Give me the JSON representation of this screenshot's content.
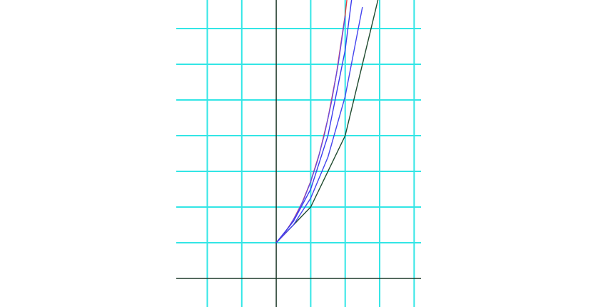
{
  "chart_data": {
    "type": "line",
    "title": "",
    "xlabel": "",
    "ylabel": "",
    "xlim": [
      -2.9,
      4.2
    ],
    "ylim": [
      -0.8,
      7.8
    ],
    "grid": true,
    "grid_x": [
      -2,
      -1,
      0,
      1,
      2,
      3,
      4
    ],
    "grid_y": [
      0,
      1,
      2,
      3,
      4,
      5,
      6,
      7
    ],
    "colors": {
      "background": "#ffffff",
      "grid": "#33e6e6",
      "axes": "#1f3a2a"
    },
    "series": [
      {
        "color": "#1f4a2e",
        "x": [
          0,
          1,
          2,
          3
        ],
        "y": [
          1,
          2,
          4,
          8
        ]
      },
      {
        "color": "#4444ee",
        "x": [
          0,
          0.5,
          1,
          1.5,
          2,
          2.5
        ],
        "y": [
          1,
          1.5,
          2.25,
          3.4,
          5.1,
          7.6
        ]
      },
      {
        "color": "#e63a3a",
        "x": [
          0,
          0.25,
          0.5,
          0.75,
          1,
          1.25,
          1.5,
          1.75,
          2,
          2.25
        ],
        "y": [
          1,
          1.28,
          1.65,
          2.12,
          2.72,
          3.49,
          4.48,
          5.75,
          7.39,
          9.49
        ]
      },
      {
        "color": "#6a4ae0",
        "x": [
          0,
          0.2,
          0.4,
          0.6,
          0.8,
          1,
          1.2,
          1.4,
          1.6,
          1.8,
          2
        ],
        "y": [
          1,
          1.22,
          1.49,
          1.82,
          2.22,
          2.71,
          3.31,
          4.04,
          4.93,
          6.02,
          7.35
        ]
      },
      {
        "color": "#3a3aee",
        "x": [
          0,
          0.5,
          1,
          1.5,
          2,
          2.5
        ],
        "y": [
          1,
          1.6,
          2.5,
          4.0,
          6.4,
          10.2
        ]
      }
    ]
  }
}
